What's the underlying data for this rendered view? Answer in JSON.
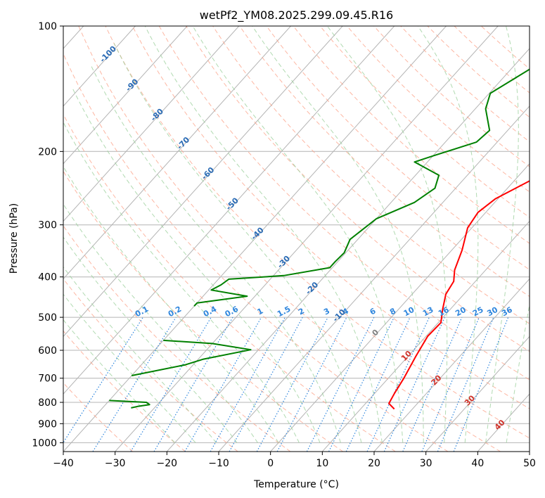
{
  "chart_data": {
    "type": "line",
    "title": "wetPf2_YM08.2025.299.09.45.R16",
    "xlabel": "Temperature (°C)",
    "ylabel": "Pressure (hPa)",
    "xlim": [
      -40,
      50
    ],
    "ylim": [
      1050,
      100
    ],
    "y_scale": "log",
    "grid": true,
    "x_ticks": [
      "−40",
      "−30",
      "−20",
      "−10",
      "0",
      "10",
      "20",
      "30",
      "40",
      "50"
    ],
    "y_ticks": [
      "100",
      "200",
      "300",
      "400",
      "500",
      "600",
      "700",
      "800",
      "900",
      "1000"
    ],
    "x_tick_values": [
      -40,
      -30,
      -20,
      -10,
      0,
      10,
      20,
      30,
      40,
      50
    ],
    "y_tick_values": [
      100,
      200,
      300,
      400,
      500,
      600,
      700,
      800,
      900,
      1000
    ],
    "series": [
      {
        "color": "#ff0000",
        "points": [
          [
            18.3,
            100
          ],
          [
            16.2,
            112
          ],
          [
            14.5,
            125
          ],
          [
            13.8,
            140
          ],
          [
            12.5,
            158
          ],
          [
            9.2,
            178
          ],
          [
            7.2,
            195
          ],
          [
            6.5,
            210
          ],
          [
            3.5,
            232
          ],
          [
            -0.5,
            260
          ],
          [
            -1.5,
            280
          ],
          [
            -0.8,
            305
          ],
          [
            2.0,
            345
          ],
          [
            4.0,
            385
          ],
          [
            5.8,
            410
          ],
          [
            6.5,
            440
          ],
          [
            8.5,
            478
          ],
          [
            10.5,
            515
          ],
          [
            10.3,
            555
          ],
          [
            11.5,
            620
          ],
          [
            13.0,
            700
          ],
          [
            13.8,
            760
          ],
          [
            14.5,
            805
          ],
          [
            16.5,
            830
          ]
        ]
      },
      {
        "color": "#008000",
        "points": [
          [
            -11.5,
            100
          ],
          [
            -14.5,
            118
          ],
          [
            -19.8,
            145
          ],
          [
            -18.0,
            158
          ],
          [
            -13.5,
            178
          ],
          [
            -14.0,
            190
          ],
          [
            -20.0,
            205
          ],
          [
            -22.5,
            212
          ],
          [
            -15.5,
            228
          ],
          [
            -14.0,
            245
          ],
          [
            -15.5,
            265
          ],
          [
            -20.0,
            290
          ],
          [
            -21.5,
            325
          ],
          [
            -20.3,
            350
          ],
          [
            -20.5,
            368
          ],
          [
            -20.5,
            380
          ],
          [
            -28.0,
            397
          ],
          [
            -38.0,
            405
          ],
          [
            -38.5,
            418
          ],
          [
            -39.5,
            430
          ],
          [
            -31.5,
            445
          ],
          [
            -40.0,
            462
          ],
          [
            -40,
            470
          ]
        ]
      },
      {
        "color": "#008000",
        "points": [
          [
            -40,
            568
          ],
          [
            -30.0,
            578
          ],
          [
            -21.5,
            598
          ],
          [
            -29.0,
            630
          ],
          [
            -31.5,
            650
          ],
          [
            -40.0,
            690
          ]
        ]
      },
      {
        "color": "#008000",
        "points": [
          [
            -40,
            792
          ],
          [
            -32.5,
            800
          ],
          [
            -31.5,
            810
          ],
          [
            -33.5,
            818
          ],
          [
            -34.5,
            825
          ]
        ]
      }
    ],
    "dry_adiabat_labels": [
      "-100",
      "-90",
      "-80",
      "-70",
      "-60",
      "-50",
      "-40",
      "-30",
      "-20",
      "-10",
      "0",
      "10",
      "20",
      "30",
      "40"
    ],
    "mixing_ratio_labels": [
      "0.1",
      "0.2",
      "0.4",
      "0.6",
      "1",
      "1.5",
      "2",
      "3",
      "4",
      "6",
      "8",
      "10",
      "13",
      "16",
      "20",
      "25",
      "30",
      "36"
    ],
    "mixing_ratio_values": [
      0.1,
      0.2,
      0.4,
      0.6,
      1,
      1.5,
      2,
      3,
      4,
      6,
      8,
      10,
      13,
      16,
      20,
      25,
      30,
      36
    ],
    "colors": {
      "isotherm": "#b4b4b4",
      "dry_adiabat": "#fc9f84",
      "moist_adiabat": "#9ed19e",
      "mixing_ratio": "#2f86dd",
      "dry_label_blue": "#2a6bb5",
      "dry_label_gray": "#808080",
      "dry_label_red": "#d0342c"
    }
  }
}
